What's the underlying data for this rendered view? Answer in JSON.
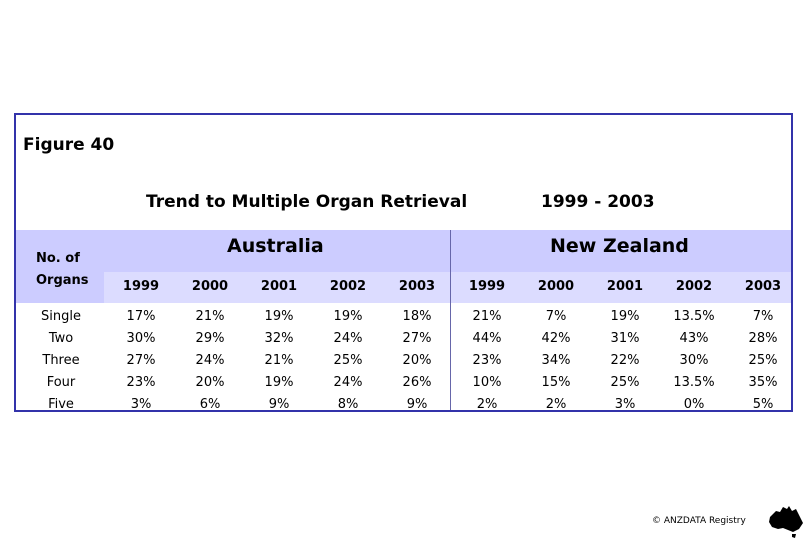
{
  "figure_label": "Figure 40",
  "title": "Trend to Multiple Organ Retrieval",
  "year_range": "1999 - 2003",
  "header": {
    "organs_line1": "No. of",
    "organs_line2": "Organs",
    "regions": [
      "Australia",
      "New Zealand"
    ],
    "years": [
      "1999",
      "2000",
      "2001",
      "2002",
      "2003"
    ]
  },
  "rows": [
    {
      "label": "Single",
      "australia": [
        "17%",
        "21%",
        "19%",
        "19%",
        "18%"
      ],
      "new_zealand": [
        "21%",
        "7%",
        "19%",
        "13.5%",
        "7%"
      ]
    },
    {
      "label": "Two",
      "australia": [
        "30%",
        "29%",
        "32%",
        "24%",
        "27%"
      ],
      "new_zealand": [
        "44%",
        "42%",
        "31%",
        "43%",
        "28%"
      ]
    },
    {
      "label": "Three",
      "australia": [
        "27%",
        "24%",
        "21%",
        "25%",
        "20%"
      ],
      "new_zealand": [
        "23%",
        "34%",
        "22%",
        "30%",
        "25%"
      ]
    },
    {
      "label": "Four",
      "australia": [
        "23%",
        "20%",
        "19%",
        "24%",
        "26%"
      ],
      "new_zealand": [
        "10%",
        "15%",
        "25%",
        "13.5%",
        "35%"
      ]
    },
    {
      "label": "Five",
      "australia": [
        "3%",
        "6%",
        "9%",
        "8%",
        "9%"
      ],
      "new_zealand": [
        "2%",
        "2%",
        "3%",
        "0%",
        "5%"
      ]
    }
  ],
  "footer": "© ANZDATA Registry",
  "colors": {
    "border": "#3333aa",
    "header_band": "#ccccff",
    "year_band": "#dcdcff"
  },
  "icons": {
    "logo": "australia-map-icon"
  }
}
